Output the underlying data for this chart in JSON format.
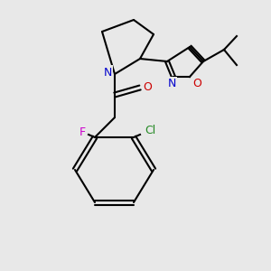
{
  "bg_color": "#e8e8e8",
  "bond_color": "#000000",
  "N_color": "#0000cc",
  "O_color": "#cc0000",
  "F_color": "#cc00cc",
  "Cl_color": "#228822",
  "lw": 1.5,
  "atoms": {
    "N": "N",
    "O_carbonyl": "O",
    "O_isoxazole": "O",
    "N_isoxazole": "N",
    "F": "F",
    "Cl": "Cl"
  }
}
